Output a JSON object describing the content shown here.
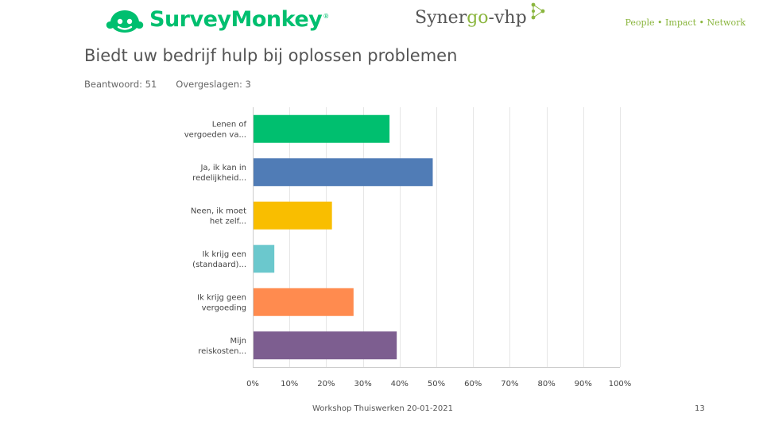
{
  "header": {
    "surveymonkey_logo_text": "SurveyMonkey",
    "surveymonkey_reg_mark": "®",
    "synergo_logo": {
      "part1": "Syner",
      "part2": "go",
      "part3": "-vhp"
    },
    "tagline": "People • Impact • Network"
  },
  "question": {
    "title": "Biedt uw bedrijf hulp bij oplossen problemen",
    "answered": "Beantwoord: 51",
    "skipped": "Overgeslagen: 3"
  },
  "footer": {
    "text": "Workshop Thuiswerken 20-01-2021",
    "page_number": "13"
  },
  "colors": {
    "brand_green": "#00bf6f",
    "synergo_green": "#8bb63f",
    "grid": "#e6e6e6"
  },
  "chart_data": {
    "type": "bar",
    "orientation": "horizontal",
    "title": "Biedt uw bedrijf hulp bij oplossen problemen",
    "categories": [
      [
        "Lenen of",
        "vergoeden va..."
      ],
      [
        "Ja, ik kan in",
        "redelijkheid..."
      ],
      [
        "Neen, ik moet",
        "het zelf..."
      ],
      [
        "Ik krijg een",
        "(standaard)..."
      ],
      [
        "Ik krijg geen",
        "vergoeding"
      ],
      [
        "Mijn",
        "reiskosten..."
      ]
    ],
    "values": [
      37.25,
      49.02,
      21.57,
      5.88,
      27.45,
      39.22
    ],
    "colors": [
      "#00bf6f",
      "#507cb6",
      "#f9be00",
      "#6bc8cd",
      "#ff8b4f",
      "#7d5e90"
    ],
    "xlim": [
      0,
      100
    ],
    "xticks": [
      "0%",
      "10%",
      "20%",
      "30%",
      "40%",
      "50%",
      "60%",
      "70%",
      "80%",
      "90%",
      "100%"
    ],
    "grid": true,
    "xlabel": "",
    "ylabel": ""
  }
}
